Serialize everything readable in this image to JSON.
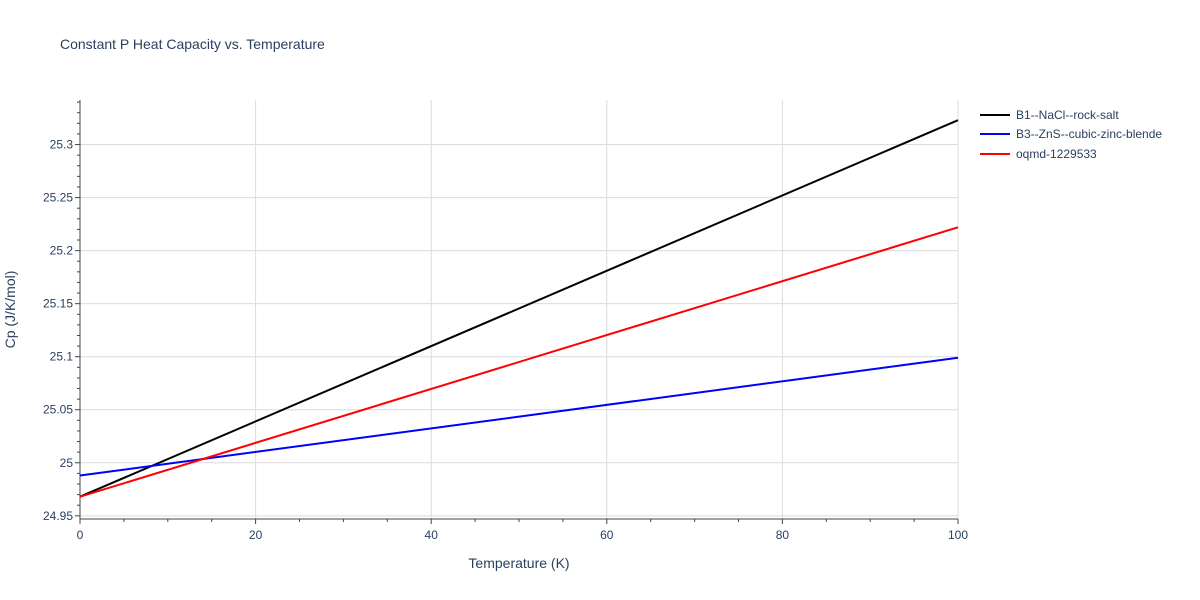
{
  "chart_data": {
    "type": "line",
    "title": "Constant P Heat Capacity vs. Temperature",
    "xlabel": "Temperature (K)",
    "ylabel": "Cp (J/K/mol)",
    "xlim": [
      0,
      100
    ],
    "ylim": [
      24.947,
      25.342
    ],
    "x_ticks": [
      0,
      20,
      40,
      60,
      80,
      100
    ],
    "y_ticks": [
      24.95,
      25,
      25.05,
      25.1,
      25.15,
      25.2,
      25.25,
      25.3
    ],
    "x_tick_labels": [
      "0",
      "20",
      "40",
      "60",
      "80",
      "100"
    ],
    "y_tick_labels": [
      "24.95",
      "25",
      "25.05",
      "25.1",
      "25.15",
      "25.2",
      "25.25",
      "25.3"
    ],
    "grid": true,
    "legend_position": "right",
    "series": [
      {
        "name": "B1--NaCl--rock-salt",
        "color": "#000000",
        "x": [
          0,
          100
        ],
        "values": [
          24.968,
          25.323
        ]
      },
      {
        "name": "B3--ZnS--cubic-zinc-blende",
        "color": "#0000ff",
        "x": [
          0,
          100
        ],
        "values": [
          24.988,
          25.099
        ]
      },
      {
        "name": "oqmd-1229533",
        "color": "#ff0000",
        "x": [
          0,
          100
        ],
        "values": [
          24.968,
          25.222
        ]
      }
    ]
  }
}
